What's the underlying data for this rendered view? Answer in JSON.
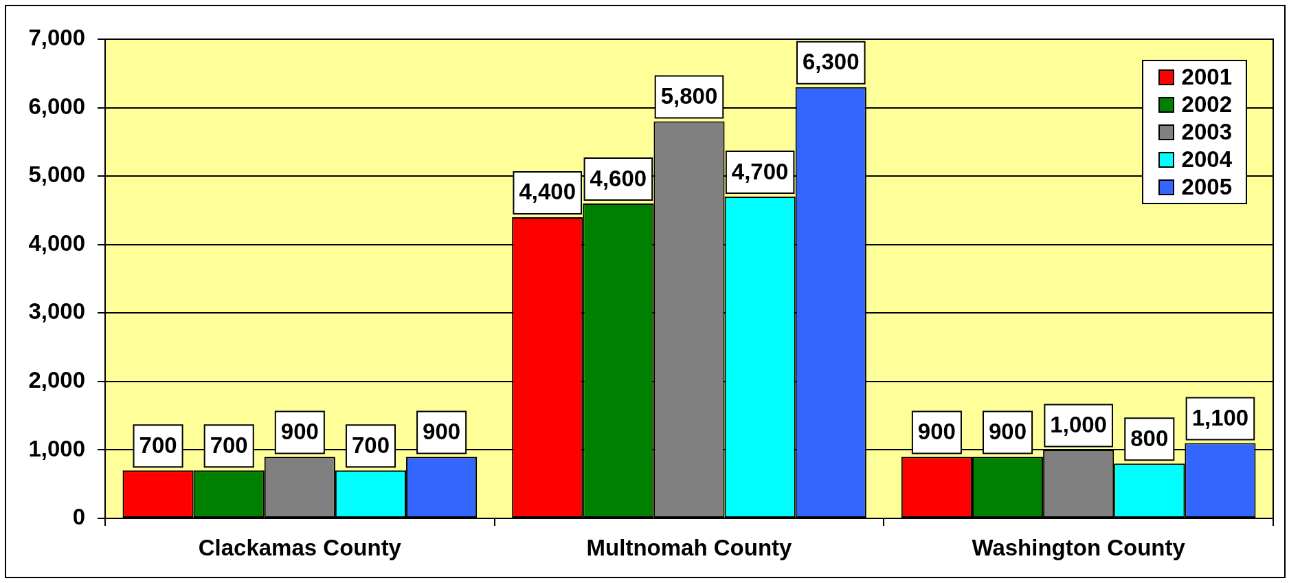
{
  "chart_data": {
    "type": "bar",
    "categories": [
      "Clackamas County",
      "Multnomah County",
      "Washington County"
    ],
    "series": [
      {
        "name": "2001",
        "color": "#ff0000",
        "values": [
          700,
          4400,
          900
        ],
        "value_labels": [
          "700",
          "4,400",
          "900"
        ]
      },
      {
        "name": "2002",
        "color": "#008000",
        "values": [
          700,
          4600,
          900
        ],
        "value_labels": [
          "700",
          "4,600",
          "900"
        ]
      },
      {
        "name": "2003",
        "color": "#808080",
        "values": [
          900,
          5800,
          1000
        ],
        "value_labels": [
          "900",
          "5,800",
          "1,000"
        ]
      },
      {
        "name": "2004",
        "color": "#00ffff",
        "values": [
          700,
          4700,
          800
        ],
        "value_labels": [
          "700",
          "4,700",
          "800"
        ]
      },
      {
        "name": "2005",
        "color": "#3366ff",
        "values": [
          900,
          6300,
          1100
        ],
        "value_labels": [
          "900",
          "6,300",
          "1,100"
        ]
      }
    ],
    "ylim": [
      0,
      7000
    ],
    "yticks": [
      0,
      {
        "value": 1000,
        "label": "1,000"
      },
      {
        "value": 2000,
        "label": "2,000"
      },
      {
        "value": 3000,
        "label": "3,000"
      },
      {
        "value": 4000,
        "label": "4,000"
      },
      {
        "value": 5000,
        "label": "5,000"
      },
      {
        "value": 6000,
        "label": "6,000"
      },
      {
        "value": 7000,
        "label": "7,000"
      }
    ],
    "grid": "y",
    "legend": "top right"
  }
}
